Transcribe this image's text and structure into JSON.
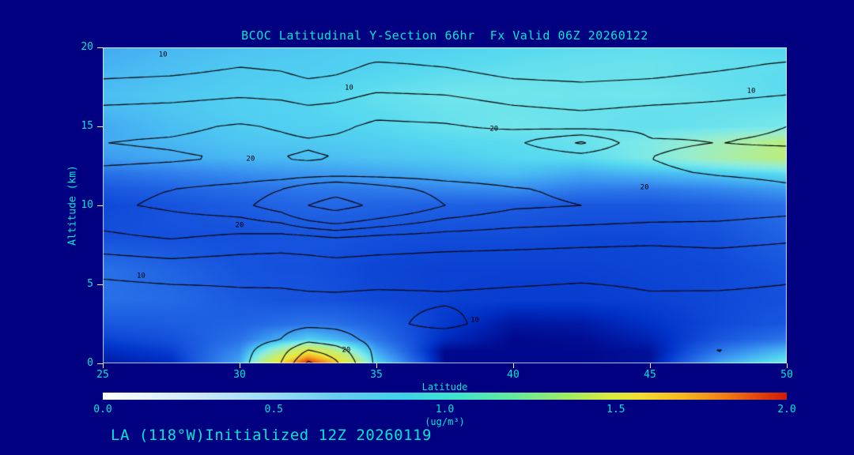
{
  "window": {
    "background": "#000080",
    "text_color": "#00E6CF"
  },
  "title": "BCOC Latitudinal Y-Section 66hr  Fx Valid 06Z 20260122",
  "footer": "LA (118°W)Initialized 12Z 20260119",
  "axes": {
    "x": {
      "label": "Latitude",
      "min": 25,
      "max": 50,
      "ticks": [
        25,
        30,
        35,
        40,
        45,
        50
      ]
    },
    "y": {
      "label": "Altitude (km)",
      "min": 0,
      "max": 20,
      "ticks": [
        0,
        5,
        10,
        15,
        20
      ]
    }
  },
  "colorbar": {
    "labels": [
      "0.0",
      "0.5",
      "1.0",
      "1.5",
      "2.0"
    ],
    "units": "(ug/m³)",
    "gradient": [
      "#FFFFFF 0%",
      "#E9F5FC 6%",
      "#CBE9F8 14%",
      "#9CDCF5 24%",
      "#68CCF0 34%",
      "#3ED2E6 44%",
      "#3FE4C9 52%",
      "#66E99C 60%",
      "#9FEB62 68%",
      "#D9EA3E 74%",
      "#F2DC2E 79%",
      "#F6B51F 85%",
      "#EF7E14 91%",
      "#E2430D 96%",
      "#D21A08 100%"
    ]
  },
  "chart_data": {
    "type": "heatmap",
    "subtype": "filled_contour_latitude_height_section",
    "title": "BCOC Latitudinal Y-Section 66hr  Fx Valid 06Z 20260122",
    "xlabel": "Latitude",
    "ylabel": "Altitude (km)",
    "value_units": "ug/m3",
    "value_range": [
      0.0,
      2.0
    ],
    "lat_range": [
      25,
      50
    ],
    "alt_range": [
      0,
      20
    ],
    "grid": {
      "lats": [
        25,
        27.5,
        30,
        31.5,
        32.5,
        33.5,
        35,
        37.5,
        40,
        42.5,
        45,
        47.5,
        50
      ],
      "alts": [
        0,
        0.75,
        1.5,
        2.5,
        4,
        6,
        8,
        10,
        11,
        12,
        13,
        14,
        15,
        16,
        17,
        18,
        19,
        20
      ],
      "values_ugm3": [
        [
          0.06,
          0.1,
          0.45,
          1.45,
          2.0,
          1.6,
          0.6,
          0.02,
          0.02,
          0.02,
          0.04,
          0.45,
          0.7
        ],
        [
          0.1,
          0.15,
          0.38,
          0.95,
          1.35,
          1.05,
          0.45,
          0.02,
          0.02,
          0.02,
          0.04,
          0.32,
          0.52
        ],
        [
          0.16,
          0.2,
          0.3,
          0.48,
          0.58,
          0.5,
          0.32,
          0.1,
          0.02,
          0.03,
          0.08,
          0.22,
          0.32
        ],
        [
          0.22,
          0.24,
          0.26,
          0.29,
          0.31,
          0.3,
          0.25,
          0.14,
          0.05,
          0.06,
          0.12,
          0.18,
          0.22
        ],
        [
          0.3,
          0.28,
          0.23,
          0.21,
          0.21,
          0.2,
          0.18,
          0.16,
          0.15,
          0.15,
          0.16,
          0.18,
          0.2
        ],
        [
          0.3,
          0.26,
          0.21,
          0.2,
          0.2,
          0.19,
          0.17,
          0.16,
          0.16,
          0.16,
          0.17,
          0.18,
          0.21
        ],
        [
          0.2,
          0.2,
          0.2,
          0.21,
          0.21,
          0.21,
          0.2,
          0.19,
          0.19,
          0.18,
          0.18,
          0.2,
          0.26
        ],
        [
          0.18,
          0.21,
          0.24,
          0.26,
          0.27,
          0.27,
          0.26,
          0.25,
          0.24,
          0.22,
          0.22,
          0.25,
          0.3
        ],
        [
          0.22,
          0.26,
          0.29,
          0.31,
          0.32,
          0.32,
          0.33,
          0.36,
          0.38,
          0.33,
          0.32,
          0.36,
          0.42
        ],
        [
          0.3,
          0.34,
          0.38,
          0.4,
          0.41,
          0.42,
          0.44,
          0.48,
          0.52,
          0.46,
          0.5,
          0.55,
          0.62
        ],
        [
          0.42,
          0.46,
          0.5,
          0.51,
          0.52,
          0.52,
          0.54,
          0.56,
          0.6,
          0.62,
          0.72,
          0.88,
          1.02
        ],
        [
          0.46,
          0.5,
          0.54,
          0.55,
          0.55,
          0.56,
          0.57,
          0.6,
          0.62,
          0.66,
          0.72,
          0.85,
          1.0
        ],
        [
          0.46,
          0.52,
          0.56,
          0.57,
          0.58,
          0.58,
          0.6,
          0.65,
          0.68,
          0.66,
          0.64,
          0.66,
          0.7
        ],
        [
          0.5,
          0.54,
          0.57,
          0.58,
          0.58,
          0.6,
          0.62,
          0.66,
          0.67,
          0.66,
          0.65,
          0.65,
          0.66
        ],
        [
          0.52,
          0.55,
          0.57,
          0.58,
          0.59,
          0.6,
          0.64,
          0.68,
          0.68,
          0.67,
          0.68,
          0.65,
          0.62
        ],
        [
          0.5,
          0.53,
          0.56,
          0.57,
          0.57,
          0.58,
          0.6,
          0.64,
          0.66,
          0.66,
          0.66,
          0.64,
          0.62
        ],
        [
          0.48,
          0.52,
          0.55,
          0.56,
          0.56,
          0.57,
          0.58,
          0.6,
          0.63,
          0.65,
          0.66,
          0.64,
          0.63
        ],
        [
          0.46,
          0.5,
          0.53,
          0.54,
          0.55,
          0.56,
          0.57,
          0.58,
          0.6,
          0.62,
          0.63,
          0.62,
          0.6
        ]
      ]
    },
    "fill_colormap": [
      {
        "v": 0.0,
        "c": "#000080"
      },
      {
        "v": 0.05,
        "c": "#0016A0"
      },
      {
        "v": 0.12,
        "c": "#0032C8"
      },
      {
        "v": 0.2,
        "c": "#1450DC"
      },
      {
        "v": 0.3,
        "c": "#2870E8"
      },
      {
        "v": 0.4,
        "c": "#3A94F0"
      },
      {
        "v": 0.5,
        "c": "#48B8F2"
      },
      {
        "v": 0.6,
        "c": "#55D8F0"
      },
      {
        "v": 0.7,
        "c": "#78E8EA"
      },
      {
        "v": 0.8,
        "c": "#96EDD0"
      },
      {
        "v": 0.9,
        "c": "#A9EDA8"
      },
      {
        "v": 1.0,
        "c": "#BAED82"
      },
      {
        "v": 1.2,
        "c": "#D6ED5A"
      },
      {
        "v": 1.4,
        "c": "#EDE23A"
      },
      {
        "v": 1.6,
        "c": "#F4AE28"
      },
      {
        "v": 1.8,
        "c": "#EA6216"
      },
      {
        "v": 2.0,
        "c": "#DC1E0E"
      }
    ],
    "contour_overlay": {
      "line_color": "#000000",
      "levels": [
        10,
        15,
        20,
        25,
        30,
        40
      ],
      "grid": [
        [
          6.0,
          6.5,
          8.5,
          15.0,
          26.0,
          21.0,
          9.0,
          4.5,
          4.0,
          4.0,
          4.5,
          7.0,
          6.0
        ],
        [
          6.2,
          6.8,
          8.5,
          13.0,
          21.0,
          18.0,
          8.8,
          4.6,
          4.2,
          4.2,
          4.8,
          10.5,
          6.5
        ],
        [
          6.5,
          7.2,
          8.5,
          10.0,
          13.5,
          12.0,
          8.5,
          5.5,
          5.0,
          5.0,
          5.5,
          7.5,
          7.0
        ],
        [
          7.0,
          7.6,
          8.2,
          8.6,
          9.0,
          9.0,
          8.2,
          12.0,
          6.0,
          6.0,
          6.5,
          7.0,
          7.5
        ],
        [
          7.0,
          7.5,
          8.8,
          9.0,
          9.2,
          9.2,
          9.0,
          9.4,
          9.0,
          8.8,
          9.6,
          9.4,
          9.2
        ],
        [
          11.5,
          12.5,
          11.8,
          11.6,
          12.0,
          12.4,
          12.0,
          11.6,
          11.4,
          11.0,
          11.0,
          11.4,
          10.8
        ],
        [
          19.0,
          20.5,
          19.0,
          18.5,
          19.0,
          20.0,
          19.0,
          18.0,
          17.5,
          17.0,
          16.5,
          17.0,
          16.0
        ],
        [
          24.0,
          26.0,
          28.5,
          33.0,
          40.0,
          44.0,
          38.0,
          30.0,
          26.0,
          25.0,
          24.0,
          23.0,
          22.0
        ],
        [
          23.5,
          25.0,
          27.0,
          30.0,
          34.0,
          36.5,
          33.0,
          28.0,
          25.5,
          24.0,
          22.5,
          21.5,
          20.5
        ],
        [
          21.0,
          21.5,
          22.0,
          22.0,
          22.5,
          23.0,
          23.0,
          22.5,
          22.0,
          21.5,
          20.5,
          19.8,
          19.3
        ],
        [
          19.0,
          19.5,
          20.3,
          20.0,
          19.5,
          20.0,
          21.5,
          21.0,
          21.0,
          22.5,
          20.0,
          19.0,
          18.5
        ],
        [
          20.0,
          20.5,
          21.5,
          21.0,
          20.5,
          21.0,
          22.0,
          21.5,
          24.0,
          31.0,
          20.5,
          20.0,
          20.5
        ],
        [
          18.5,
          19.0,
          20.5,
          19.5,
          18.5,
          19.0,
          21.0,
          20.5,
          19.0,
          18.0,
          18.5,
          19.0,
          20.0
        ],
        [
          16.0,
          16.5,
          17.5,
          17.0,
          16.0,
          16.5,
          18.5,
          18.0,
          16.0,
          15.0,
          16.0,
          16.5,
          17.5
        ],
        [
          13.0,
          13.5,
          14.5,
          14.0,
          13.0,
          13.5,
          15.5,
          15.0,
          13.0,
          12.0,
          13.0,
          14.0,
          15.0
        ],
        [
          10.0,
          10.5,
          11.5,
          11.0,
          10.0,
          10.5,
          12.0,
          11.5,
          10.0,
          9.5,
          10.0,
          11.0,
          12.0
        ],
        [
          7.5,
          8.0,
          9.5,
          9.0,
          8.0,
          8.5,
          10.3,
          9.5,
          8.0,
          7.0,
          8.0,
          9.0,
          10.3
        ],
        [
          5.0,
          5.5,
          6.5,
          6.0,
          5.5,
          6.0,
          7.0,
          6.5,
          5.5,
          5.0,
          5.5,
          6.5,
          7.0
        ]
      ],
      "labels": [
        {
          "text": "10",
          "lat": 27.2,
          "alt": 19.5
        },
        {
          "text": "10",
          "lat": 34.0,
          "alt": 17.4
        },
        {
          "text": "10",
          "lat": 48.7,
          "alt": 17.2
        },
        {
          "text": "20",
          "lat": 39.3,
          "alt": 14.8
        },
        {
          "text": "20",
          "lat": 30.4,
          "alt": 12.9
        },
        {
          "text": "20",
          "lat": 44.8,
          "alt": 11.1
        },
        {
          "text": "20",
          "lat": 30.0,
          "alt": 8.7
        },
        {
          "text": "10",
          "lat": 26.4,
          "alt": 5.5
        },
        {
          "text": "10",
          "lat": 38.6,
          "alt": 2.7
        },
        {
          "text": "20",
          "lat": 33.9,
          "alt": 0.8
        }
      ]
    },
    "legend_position": "bottom",
    "grid_lines": false
  }
}
